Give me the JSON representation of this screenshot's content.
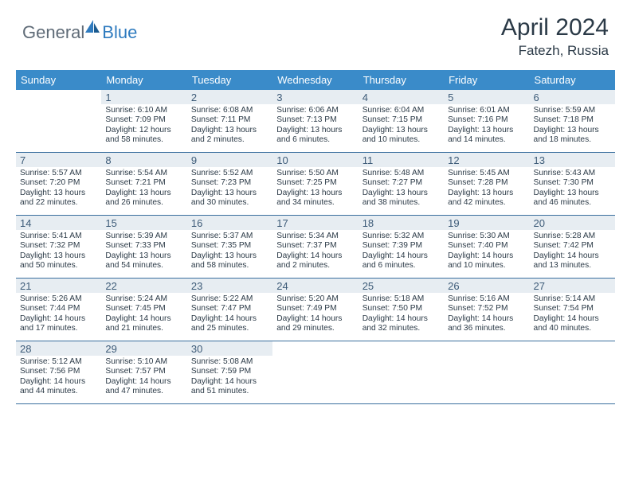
{
  "brand": {
    "part1": "General",
    "part2": "Blue"
  },
  "title": "April 2024",
  "location": "Fatezh, Russia",
  "colors": {
    "header_bg": "#3a8bc9",
    "header_text": "#ffffff",
    "daynum_bg": "#e7edf2",
    "daynum_text": "#3d5b78",
    "rule": "#3a6f9e",
    "body_text": "#2b3a47",
    "brand_gray": "#5f6b77",
    "brand_blue": "#2f7bbf"
  },
  "day_names": [
    "Sunday",
    "Monday",
    "Tuesday",
    "Wednesday",
    "Thursday",
    "Friday",
    "Saturday"
  ],
  "weeks": [
    [
      {
        "n": "",
        "sr": "",
        "ss": "",
        "dl": ""
      },
      {
        "n": "1",
        "sr": "Sunrise: 6:10 AM",
        "ss": "Sunset: 7:09 PM",
        "dl": "Daylight: 12 hours and 58 minutes."
      },
      {
        "n": "2",
        "sr": "Sunrise: 6:08 AM",
        "ss": "Sunset: 7:11 PM",
        "dl": "Daylight: 13 hours and 2 minutes."
      },
      {
        "n": "3",
        "sr": "Sunrise: 6:06 AM",
        "ss": "Sunset: 7:13 PM",
        "dl": "Daylight: 13 hours and 6 minutes."
      },
      {
        "n": "4",
        "sr": "Sunrise: 6:04 AM",
        "ss": "Sunset: 7:15 PM",
        "dl": "Daylight: 13 hours and 10 minutes."
      },
      {
        "n": "5",
        "sr": "Sunrise: 6:01 AM",
        "ss": "Sunset: 7:16 PM",
        "dl": "Daylight: 13 hours and 14 minutes."
      },
      {
        "n": "6",
        "sr": "Sunrise: 5:59 AM",
        "ss": "Sunset: 7:18 PM",
        "dl": "Daylight: 13 hours and 18 minutes."
      }
    ],
    [
      {
        "n": "7",
        "sr": "Sunrise: 5:57 AM",
        "ss": "Sunset: 7:20 PM",
        "dl": "Daylight: 13 hours and 22 minutes."
      },
      {
        "n": "8",
        "sr": "Sunrise: 5:54 AM",
        "ss": "Sunset: 7:21 PM",
        "dl": "Daylight: 13 hours and 26 minutes."
      },
      {
        "n": "9",
        "sr": "Sunrise: 5:52 AM",
        "ss": "Sunset: 7:23 PM",
        "dl": "Daylight: 13 hours and 30 minutes."
      },
      {
        "n": "10",
        "sr": "Sunrise: 5:50 AM",
        "ss": "Sunset: 7:25 PM",
        "dl": "Daylight: 13 hours and 34 minutes."
      },
      {
        "n": "11",
        "sr": "Sunrise: 5:48 AM",
        "ss": "Sunset: 7:27 PM",
        "dl": "Daylight: 13 hours and 38 minutes."
      },
      {
        "n": "12",
        "sr": "Sunrise: 5:45 AM",
        "ss": "Sunset: 7:28 PM",
        "dl": "Daylight: 13 hours and 42 minutes."
      },
      {
        "n": "13",
        "sr": "Sunrise: 5:43 AM",
        "ss": "Sunset: 7:30 PM",
        "dl": "Daylight: 13 hours and 46 minutes."
      }
    ],
    [
      {
        "n": "14",
        "sr": "Sunrise: 5:41 AM",
        "ss": "Sunset: 7:32 PM",
        "dl": "Daylight: 13 hours and 50 minutes."
      },
      {
        "n": "15",
        "sr": "Sunrise: 5:39 AM",
        "ss": "Sunset: 7:33 PM",
        "dl": "Daylight: 13 hours and 54 minutes."
      },
      {
        "n": "16",
        "sr": "Sunrise: 5:37 AM",
        "ss": "Sunset: 7:35 PM",
        "dl": "Daylight: 13 hours and 58 minutes."
      },
      {
        "n": "17",
        "sr": "Sunrise: 5:34 AM",
        "ss": "Sunset: 7:37 PM",
        "dl": "Daylight: 14 hours and 2 minutes."
      },
      {
        "n": "18",
        "sr": "Sunrise: 5:32 AM",
        "ss": "Sunset: 7:39 PM",
        "dl": "Daylight: 14 hours and 6 minutes."
      },
      {
        "n": "19",
        "sr": "Sunrise: 5:30 AM",
        "ss": "Sunset: 7:40 PM",
        "dl": "Daylight: 14 hours and 10 minutes."
      },
      {
        "n": "20",
        "sr": "Sunrise: 5:28 AM",
        "ss": "Sunset: 7:42 PM",
        "dl": "Daylight: 14 hours and 13 minutes."
      }
    ],
    [
      {
        "n": "21",
        "sr": "Sunrise: 5:26 AM",
        "ss": "Sunset: 7:44 PM",
        "dl": "Daylight: 14 hours and 17 minutes."
      },
      {
        "n": "22",
        "sr": "Sunrise: 5:24 AM",
        "ss": "Sunset: 7:45 PM",
        "dl": "Daylight: 14 hours and 21 minutes."
      },
      {
        "n": "23",
        "sr": "Sunrise: 5:22 AM",
        "ss": "Sunset: 7:47 PM",
        "dl": "Daylight: 14 hours and 25 minutes."
      },
      {
        "n": "24",
        "sr": "Sunrise: 5:20 AM",
        "ss": "Sunset: 7:49 PM",
        "dl": "Daylight: 14 hours and 29 minutes."
      },
      {
        "n": "25",
        "sr": "Sunrise: 5:18 AM",
        "ss": "Sunset: 7:50 PM",
        "dl": "Daylight: 14 hours and 32 minutes."
      },
      {
        "n": "26",
        "sr": "Sunrise: 5:16 AM",
        "ss": "Sunset: 7:52 PM",
        "dl": "Daylight: 14 hours and 36 minutes."
      },
      {
        "n": "27",
        "sr": "Sunrise: 5:14 AM",
        "ss": "Sunset: 7:54 PM",
        "dl": "Daylight: 14 hours and 40 minutes."
      }
    ],
    [
      {
        "n": "28",
        "sr": "Sunrise: 5:12 AM",
        "ss": "Sunset: 7:56 PM",
        "dl": "Daylight: 14 hours and 44 minutes."
      },
      {
        "n": "29",
        "sr": "Sunrise: 5:10 AM",
        "ss": "Sunset: 7:57 PM",
        "dl": "Daylight: 14 hours and 47 minutes."
      },
      {
        "n": "30",
        "sr": "Sunrise: 5:08 AM",
        "ss": "Sunset: 7:59 PM",
        "dl": "Daylight: 14 hours and 51 minutes."
      },
      {
        "n": "",
        "sr": "",
        "ss": "",
        "dl": ""
      },
      {
        "n": "",
        "sr": "",
        "ss": "",
        "dl": ""
      },
      {
        "n": "",
        "sr": "",
        "ss": "",
        "dl": ""
      },
      {
        "n": "",
        "sr": "",
        "ss": "",
        "dl": ""
      }
    ]
  ]
}
